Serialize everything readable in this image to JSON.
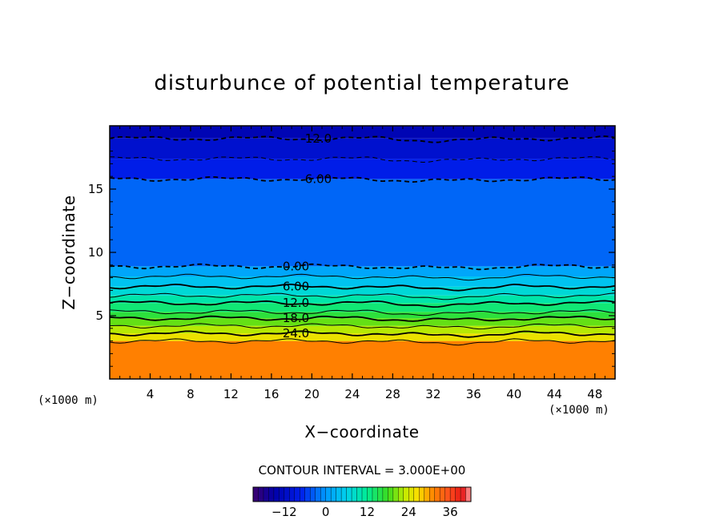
{
  "chart_data": {
    "type": "contour",
    "title": "disturbunce of potential temperature",
    "xlabel": "X−coordinate",
    "ylabel": "Z−coordinate",
    "x_unit": "(×1000 m)",
    "y_unit": "(×1000 m)",
    "xlim": [
      0,
      50
    ],
    "ylim": [
      0,
      20
    ],
    "x_ticks": [
      4,
      8,
      12,
      16,
      20,
      24,
      28,
      32,
      36,
      40,
      44,
      48
    ],
    "y_ticks": [
      5,
      10,
      15
    ],
    "contour_interval_label": "CONTOUR INTERVAL = 3.000E+00",
    "contour_interval": 3.0,
    "contours": [
      {
        "level": -12.0,
        "z": 19.0,
        "label": "-12.0",
        "label_x": 19
      },
      {
        "level": -9.0,
        "z": 17.4,
        "label": ""
      },
      {
        "level": -6.0,
        "z": 15.8,
        "label": "-6.00",
        "label_x": 19
      },
      {
        "level": 0.0,
        "z": 8.9,
        "label": "0.00",
        "label_x": 17
      },
      {
        "level": 3.0,
        "z": 8.1,
        "label": ""
      },
      {
        "level": 6.0,
        "z": 7.3,
        "label": "6.00",
        "label_x": 17
      },
      {
        "level": 9.0,
        "z": 6.6,
        "label": ""
      },
      {
        "level": 12.0,
        "z": 6.0,
        "label": "12.0",
        "label_x": 17
      },
      {
        "level": 15.0,
        "z": 5.3,
        "label": ""
      },
      {
        "level": 18.0,
        "z": 4.8,
        "label": "18.0",
        "label_x": 17
      },
      {
        "level": 21.0,
        "z": 4.2,
        "label": ""
      },
      {
        "level": 24.0,
        "z": 3.6,
        "label": "24.0",
        "label_x": 17
      },
      {
        "level": 27.0,
        "z": 3.0,
        "label": ""
      }
    ],
    "colorbar": {
      "ticks": [
        -12,
        0,
        12,
        24,
        36
      ],
      "tick_labels": [
        "−12",
        "0",
        "12",
        "24",
        "36"
      ],
      "range": [
        -21,
        42
      ]
    },
    "colors": {
      "cold": "#0a1fe6",
      "neutral": "#17d8c0",
      "warm": "#ff6a1a"
    }
  }
}
